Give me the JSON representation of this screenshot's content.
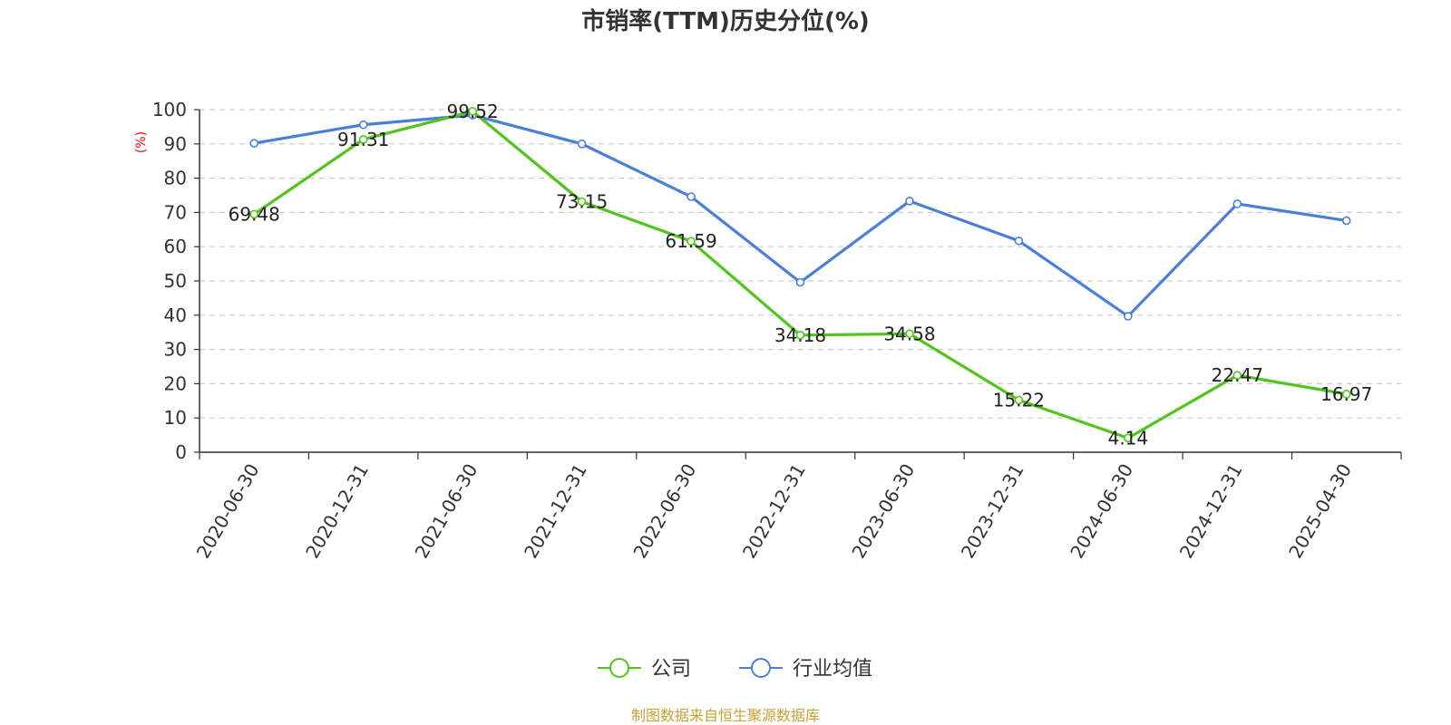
{
  "chart_data": {
    "type": "line",
    "title": "市销率(TTM)历史分位(%)",
    "ylabel": "(%)",
    "ylim": [
      0,
      100
    ],
    "yticks": [
      0,
      10,
      20,
      30,
      40,
      50,
      60,
      70,
      80,
      90,
      100
    ],
    "categories": [
      "2020-06-30",
      "2020-12-31",
      "2021-06-30",
      "2021-12-31",
      "2022-06-30",
      "2022-12-31",
      "2023-06-30",
      "2023-12-31",
      "2024-06-30",
      "2024-12-31",
      "2025-04-30"
    ],
    "grid": true,
    "legend_position": "bottom",
    "series": [
      {
        "name": "公司",
        "color": "#52c41a",
        "show_labels": true,
        "values": [
          69.48,
          91.31,
          99.52,
          73.15,
          61.59,
          34.18,
          34.58,
          15.22,
          4.14,
          22.47,
          16.97
        ]
      },
      {
        "name": "行业均值",
        "color": "#4a7fdb",
        "show_labels": false,
        "values": [
          90.2,
          95.6,
          98.4,
          90.0,
          74.6,
          49.6,
          73.3,
          61.7,
          39.7,
          72.5,
          67.6
        ]
      }
    ],
    "source": "制图数据来自恒生聚源数据库"
  }
}
